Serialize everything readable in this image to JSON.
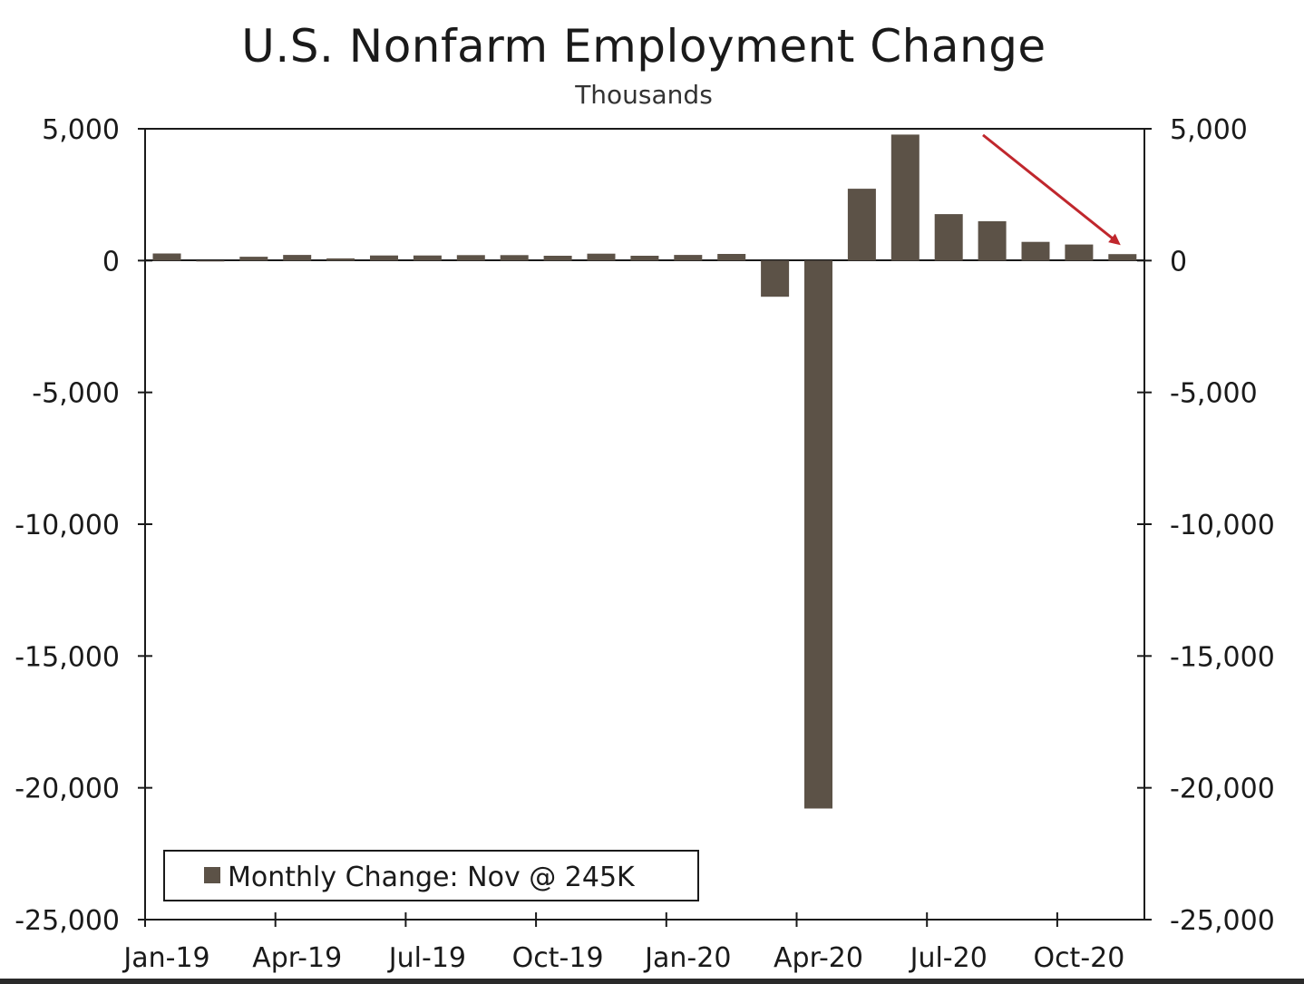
{
  "chart_data": {
    "type": "bar",
    "title": "U.S. Nonfarm Employment Change",
    "subtitle": "Thousands",
    "xlabel": "",
    "ylabel": "",
    "ylim": [
      -25000,
      5000
    ],
    "yticks": [
      5000,
      0,
      -5000,
      -10000,
      -15000,
      -20000,
      -25000
    ],
    "ytick_labels": [
      "5,000",
      "0",
      "-5,000",
      "-10,000",
      "-15,000",
      "-20,000",
      "-25,000"
    ],
    "x_tick_labels": [
      "Jan-19",
      "Apr-19",
      "Jul-19",
      "Oct-19",
      "Jan-20",
      "Apr-20",
      "Jul-20",
      "Oct-20"
    ],
    "categories": [
      "Jan-19",
      "Feb-19",
      "Mar-19",
      "Apr-19",
      "May-19",
      "Jun-19",
      "Jul-19",
      "Aug-19",
      "Sep-19",
      "Oct-19",
      "Nov-19",
      "Dec-19",
      "Jan-20",
      "Feb-20",
      "Mar-20",
      "Apr-20",
      "May-20",
      "Jun-20",
      "Jul-20",
      "Aug-20",
      "Sep-20",
      "Oct-20",
      "Nov-20"
    ],
    "series": [
      {
        "name": "Monthly Change: Nov @ 245K",
        "color": "#5c5247",
        "values": [
          269,
          1,
          147,
          216,
          85,
          193,
          194,
          207,
          208,
          185,
          261,
          184,
          214,
          251,
          -1373,
          -20787,
          2725,
          4781,
          1761,
          1493,
          711,
          610,
          245
        ]
      }
    ],
    "grid": false,
    "legend_position": "bottom-left",
    "annotation": {
      "type": "arrow",
      "color": "#c0272d",
      "from_category": "Sep-20",
      "from_value": 3800,
      "to_category": "Nov-20",
      "to_value": 450
    }
  }
}
